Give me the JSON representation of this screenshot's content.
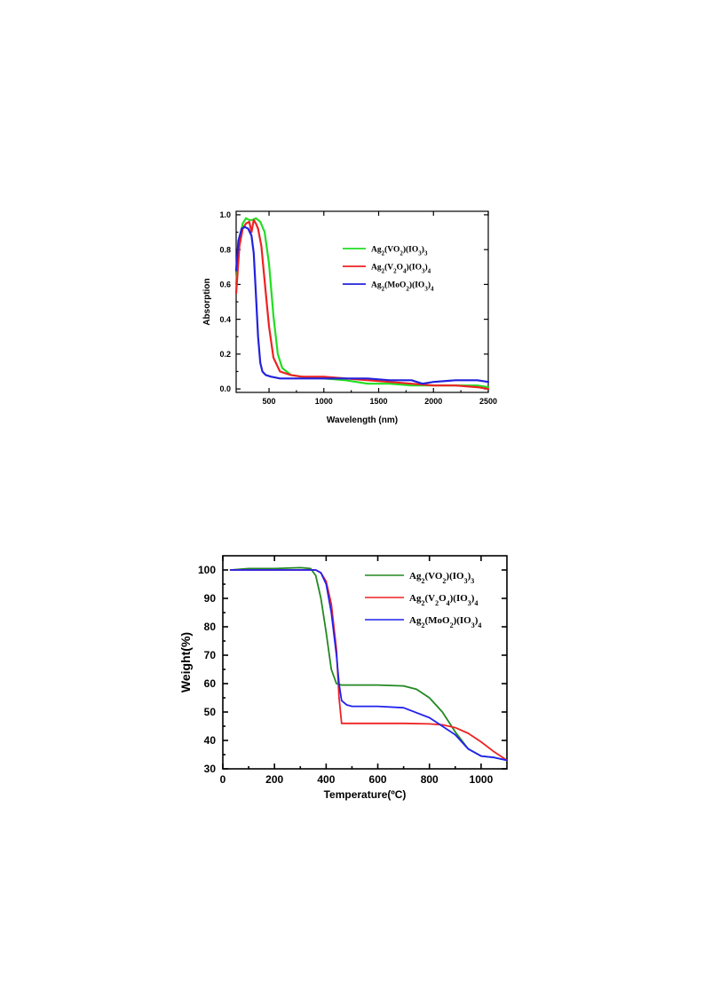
{
  "page": {
    "background": "#ffffff"
  },
  "chart_data": [
    {
      "type": "line",
      "title": "",
      "xlabel": "Wavelength (nm)",
      "ylabel": "Absorption",
      "xlim": [
        200,
        2500
      ],
      "ylim": [
        -0.02,
        1.02
      ],
      "xticks": [
        500,
        1000,
        1500,
        2000,
        2500
      ],
      "xtick_labels": [
        "500",
        "1000",
        "1500",
        "2000",
        "2500"
      ],
      "yticks": [
        0.0,
        0.2,
        0.4,
        0.6,
        0.8,
        1.0
      ],
      "ytick_labels": [
        "0.0",
        "0.2",
        "0.4",
        "0.6",
        "0.8",
        "1.0"
      ],
      "grid": false,
      "legend_position": "upper-right",
      "series": [
        {
          "name": "Ag2(VO2)(IO3)3",
          "legend": {
            "base": "Ag",
            "parts": [
              [
                "2",
                "sub"
              ],
              [
                "(VO",
                ""
              ],
              [
                "2",
                "sub"
              ],
              [
                ")(IO",
                ""
              ],
              [
                "3",
                "sub"
              ],
              [
                ")",
                ""
              ],
              [
                "3",
                "sub"
              ]
            ]
          },
          "color": "#22dd22",
          "x": [
            200,
            230,
            260,
            290,
            320,
            350,
            380,
            420,
            460,
            500,
            540,
            580,
            620,
            700,
            800,
            1000,
            1200,
            1400,
            1600,
            1800,
            2000,
            2200,
            2400,
            2500
          ],
          "y": [
            0.6,
            0.86,
            0.95,
            0.98,
            0.97,
            0.97,
            0.98,
            0.96,
            0.9,
            0.72,
            0.42,
            0.2,
            0.12,
            0.08,
            0.07,
            0.06,
            0.05,
            0.03,
            0.03,
            0.02,
            0.02,
            0.02,
            0.02,
            0.01
          ]
        },
        {
          "name": "Ag2(V2O4)(IO3)4",
          "legend": {
            "base": "Ag",
            "parts": [
              [
                "2",
                "sub"
              ],
              [
                "(V",
                ""
              ],
              [
                "2",
                "sub"
              ],
              [
                "O",
                ""
              ],
              [
                "4",
                "sub"
              ],
              [
                ")(IO",
                ""
              ],
              [
                "3",
                "sub"
              ],
              [
                ")",
                ""
              ],
              [
                "4",
                "sub"
              ]
            ]
          },
          "color": "#ee2222",
          "x": [
            200,
            230,
            260,
            290,
            320,
            340,
            360,
            380,
            400,
            430,
            460,
            500,
            540,
            600,
            700,
            800,
            1000,
            1200,
            1400,
            1600,
            1800,
            2000,
            2200,
            2400,
            2500
          ],
          "y": [
            0.55,
            0.82,
            0.92,
            0.95,
            0.96,
            0.9,
            0.97,
            0.95,
            0.92,
            0.82,
            0.62,
            0.36,
            0.18,
            0.1,
            0.08,
            0.07,
            0.07,
            0.06,
            0.05,
            0.04,
            0.03,
            0.02,
            0.02,
            0.01,
            0.0
          ]
        },
        {
          "name": "Ag2(MoO2)(IO3)4",
          "legend": {
            "base": "Ag",
            "parts": [
              [
                "2",
                "sub"
              ],
              [
                "(MoO",
                ""
              ],
              [
                "2",
                "sub"
              ],
              [
                ")(IO",
                ""
              ],
              [
                "3",
                "sub"
              ],
              [
                ")",
                ""
              ],
              [
                "4",
                "sub"
              ]
            ]
          },
          "color": "#2222dd",
          "x": [
            200,
            220,
            250,
            280,
            310,
            340,
            360,
            380,
            400,
            420,
            440,
            470,
            520,
            600,
            800,
            1000,
            1200,
            1400,
            1600,
            1800,
            1900,
            2000,
            2200,
            2400,
            2500
          ],
          "y": [
            0.68,
            0.85,
            0.92,
            0.93,
            0.92,
            0.88,
            0.78,
            0.55,
            0.3,
            0.15,
            0.1,
            0.08,
            0.07,
            0.06,
            0.06,
            0.06,
            0.06,
            0.06,
            0.05,
            0.05,
            0.03,
            0.04,
            0.05,
            0.05,
            0.04
          ]
        }
      ]
    },
    {
      "type": "line",
      "title": "",
      "xlabel": "Temperature(ºC)",
      "ylabel": "Weight(%)",
      "xlim": [
        0,
        1100
      ],
      "ylim": [
        30,
        105
      ],
      "xticks": [
        0,
        200,
        400,
        600,
        800,
        1000
      ],
      "xtick_labels": [
        "0",
        "200",
        "400",
        "600",
        "800",
        "1000"
      ],
      "yticks": [
        30,
        40,
        50,
        60,
        70,
        80,
        90,
        100
      ],
      "ytick_labels": [
        "30",
        "40",
        "50",
        "60",
        "70",
        "80",
        "90",
        "100"
      ],
      "grid": false,
      "legend_position": "upper-right",
      "series": [
        {
          "name": "Ag2(VO2)(IO3)3",
          "legend": {
            "base": "Ag",
            "parts": [
              [
                "2",
                "sub"
              ],
              [
                "(VO",
                ""
              ],
              [
                "2",
                "sub"
              ],
              [
                ")(IO",
                ""
              ],
              [
                "3",
                "sub"
              ],
              [
                ")",
                ""
              ],
              [
                "3",
                "sub"
              ]
            ]
          },
          "color": "#228822",
          "x": [
            30,
            100,
            200,
            300,
            340,
            360,
            380,
            400,
            420,
            440,
            460,
            500,
            600,
            700,
            750,
            800,
            850,
            900,
            950,
            1000,
            1050,
            1100
          ],
          "y": [
            100,
            100.5,
            100.5,
            100.8,
            100.5,
            98,
            90,
            78,
            65,
            60,
            59.5,
            59.5,
            59.5,
            59.2,
            58,
            55,
            50,
            43,
            37,
            34.5,
            34,
            33
          ]
        },
        {
          "name": "Ag2(V2O4)(IO3)4",
          "legend": {
            "base": "Ag",
            "parts": [
              [
                "2",
                "sub"
              ],
              [
                "(V",
                ""
              ],
              [
                "2",
                "sub"
              ],
              [
                "O",
                ""
              ],
              [
                "4",
                "sub"
              ],
              [
                ")(IO",
                ""
              ],
              [
                "3",
                "sub"
              ],
              [
                ")",
                ""
              ],
              [
                "4",
                "sub"
              ]
            ]
          },
          "color": "#ee2222",
          "x": [
            30,
            100,
            200,
            300,
            360,
            380,
            400,
            420,
            440,
            450,
            460,
            470,
            500,
            600,
            700,
            800,
            850,
            900,
            950,
            1000,
            1050,
            1100
          ],
          "y": [
            100,
            100,
            100,
            100,
            100,
            99,
            96,
            88,
            72,
            55,
            46,
            46,
            46,
            46,
            46,
            45.8,
            45.5,
            44.5,
            42.5,
            39.5,
            36,
            33
          ]
        },
        {
          "name": "Ag2(MoO2)(IO3)4",
          "legend": {
            "base": "Ag",
            "parts": [
              [
                "2",
                "sub"
              ],
              [
                "(MoO",
                ""
              ],
              [
                "2",
                "sub"
              ],
              [
                ")(IO",
                ""
              ],
              [
                "3",
                "sub"
              ],
              [
                ")",
                ""
              ],
              [
                "4",
                "sub"
              ]
            ]
          },
          "color": "#2222ee",
          "x": [
            30,
            100,
            200,
            300,
            360,
            380,
            400,
            420,
            440,
            450,
            460,
            480,
            500,
            600,
            700,
            800,
            900,
            950,
            1000,
            1050,
            1100
          ],
          "y": [
            100,
            100,
            100,
            100,
            100,
            99,
            95,
            85,
            70,
            60,
            54,
            52.5,
            52,
            52,
            51.5,
            48,
            42,
            37,
            34.5,
            34,
            33
          ]
        }
      ]
    }
  ]
}
